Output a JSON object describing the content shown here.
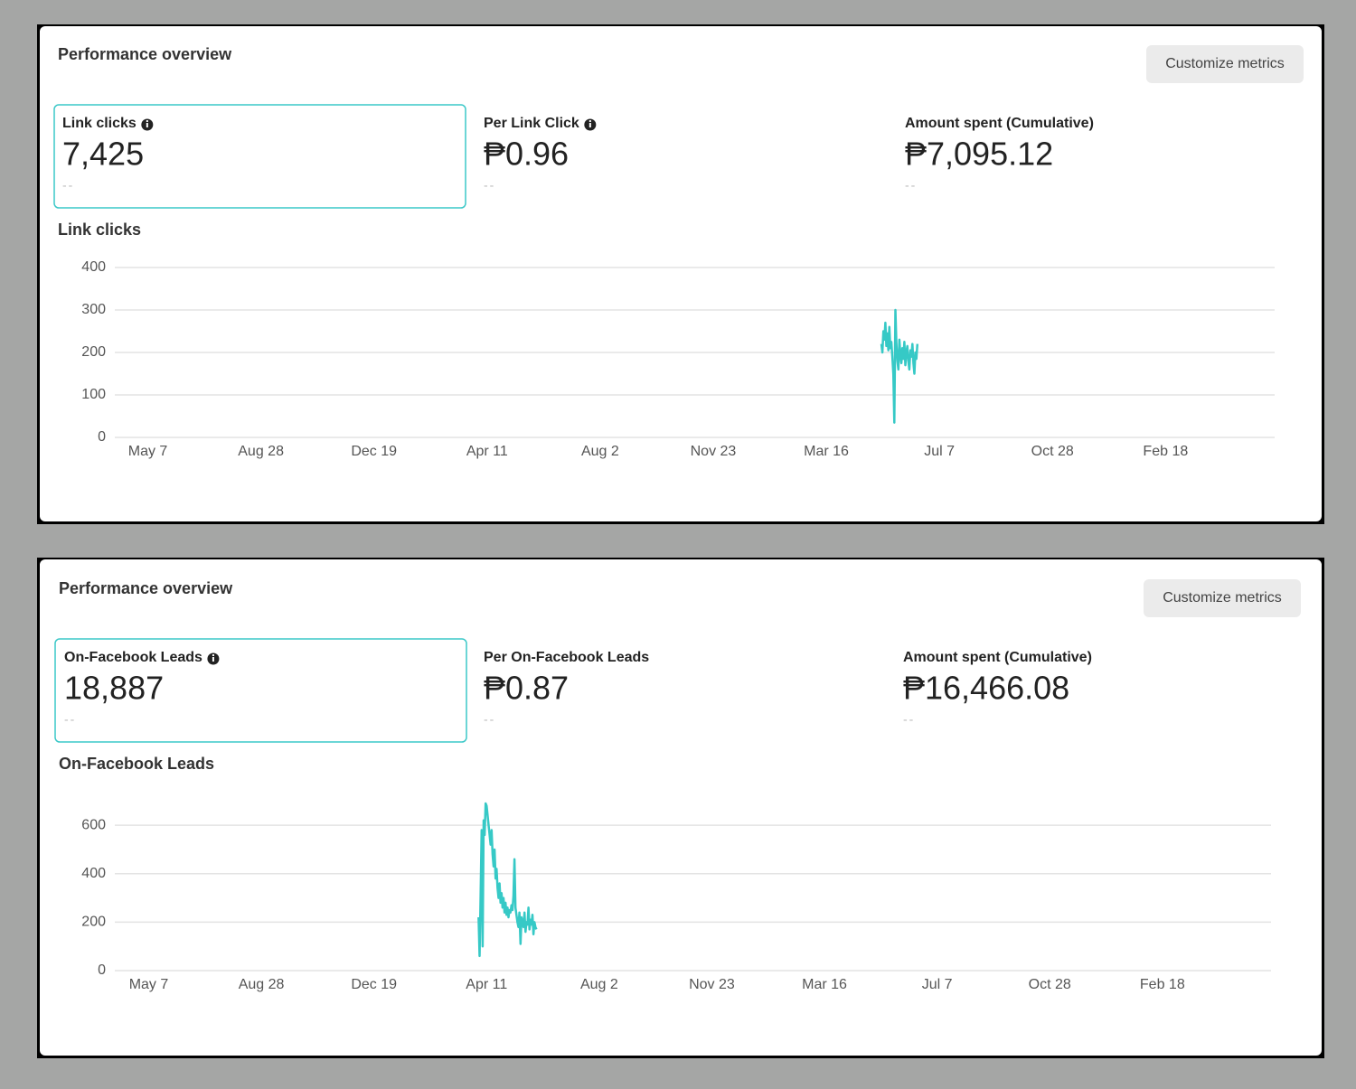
{
  "panels": [
    {
      "title": "Performance overview",
      "button": "Customize metrics",
      "metrics": [
        {
          "label": "Link clicks",
          "info_icon": true,
          "value": "7,425",
          "comparison": "--"
        },
        {
          "label": "Per Link Click",
          "info_icon": true,
          "value": "₱0.96",
          "comparison": "--"
        },
        {
          "label": "Amount spent (Cumulative)",
          "info_icon": false,
          "value": "₱7,095.12",
          "comparison": "--"
        }
      ]
    },
    {
      "title": "Performance overview",
      "button": "Customize metrics",
      "metrics": [
        {
          "label": "On-Facebook Leads",
          "info_icon": true,
          "value": "18,887",
          "comparison": "--"
        },
        {
          "label": "Per On-Facebook Leads",
          "info_icon": false,
          "value": "₱0.87",
          "comparison": "--"
        },
        {
          "label": "Amount spent (Cumulative)",
          "info_icon": false,
          "value": "₱16,466.08",
          "comparison": "--"
        }
      ]
    }
  ],
  "chart_data": [
    {
      "type": "line",
      "title": "Link clicks",
      "color": "#36c9c6",
      "grid": true,
      "xlim": [
        -33,
        1126
      ],
      "xticks": [
        {
          "value": 0,
          "label": "May 7"
        },
        {
          "value": 113,
          "label": "Aug 28"
        },
        {
          "value": 226,
          "label": "Dec 19"
        },
        {
          "value": 339,
          "label": "Apr 11"
        },
        {
          "value": 452,
          "label": "Aug 2"
        },
        {
          "value": 565,
          "label": "Nov 23"
        },
        {
          "value": 678,
          "label": "Mar 16"
        },
        {
          "value": 791,
          "label": "Jul 7"
        },
        {
          "value": 904,
          "label": "Oct 28"
        },
        {
          "value": 1017,
          "label": "Feb 18"
        }
      ],
      "ylim": [
        0,
        400
      ],
      "yticks": [
        0,
        100,
        200,
        300,
        400
      ],
      "x": [
        733,
        734,
        735,
        736,
        737,
        738,
        739,
        740,
        741,
        742,
        743,
        744,
        745,
        746,
        747,
        748,
        749,
        750,
        751,
        752,
        753,
        754,
        755,
        756,
        757,
        758,
        759,
        760,
        761,
        762,
        763,
        764,
        765,
        766,
        767,
        768,
        769
      ],
      "values": [
        220,
        200,
        250,
        230,
        270,
        215,
        245,
        205,
        260,
        210,
        225,
        190,
        150,
        35,
        300,
        220,
        180,
        160,
        230,
        195,
        175,
        210,
        185,
        225,
        170,
        200,
        215,
        180,
        160,
        205,
        190,
        220,
        175,
        150,
        200,
        185,
        220
      ]
    },
    {
      "type": "line",
      "title": "On-Facebook Leads",
      "color": "#36c9c6",
      "grid": true,
      "xlim": [
        -34,
        1126
      ],
      "xticks": [
        {
          "value": 0,
          "label": "May 7"
        },
        {
          "value": 113,
          "label": "Aug 28"
        },
        {
          "value": 226,
          "label": "Dec 19"
        },
        {
          "value": 339,
          "label": "Apr 11"
        },
        {
          "value": 452,
          "label": "Aug 2"
        },
        {
          "value": 565,
          "label": "Nov 23"
        },
        {
          "value": 678,
          "label": "Mar 16"
        },
        {
          "value": 791,
          "label": "Jul 7"
        },
        {
          "value": 904,
          "label": "Oct 28"
        },
        {
          "value": 1017,
          "label": "Feb 18"
        }
      ],
      "ylim": [
        0,
        720
      ],
      "yticks": [
        0,
        200,
        400,
        600
      ],
      "x": [
        331,
        332,
        333,
        334,
        335,
        336,
        337,
        338,
        339,
        340,
        341,
        342,
        343,
        344,
        345,
        346,
        347,
        348,
        349,
        350,
        351,
        352,
        353,
        354,
        355,
        356,
        357,
        358,
        359,
        360,
        361,
        362,
        363,
        364,
        365,
        366,
        367,
        368,
        369,
        370,
        371,
        372,
        373,
        374,
        375,
        376,
        377,
        378,
        379,
        380,
        381,
        382,
        383,
        384,
        385,
        386,
        387,
        388,
        389
      ],
      "values": [
        220,
        60,
        300,
        580,
        100,
        620,
        560,
        690,
        680,
        640,
        600,
        560,
        520,
        580,
        480,
        430,
        500,
        380,
        420,
        340,
        300,
        360,
        280,
        320,
        260,
        300,
        240,
        280,
        230,
        260,
        220,
        250,
        240,
        270,
        250,
        310,
        460,
        260,
        230,
        200,
        180,
        240,
        110,
        220,
        200,
        180,
        240,
        160,
        200,
        190,
        260,
        170,
        210,
        190,
        230,
        150,
        200,
        180,
        170
      ]
    }
  ]
}
